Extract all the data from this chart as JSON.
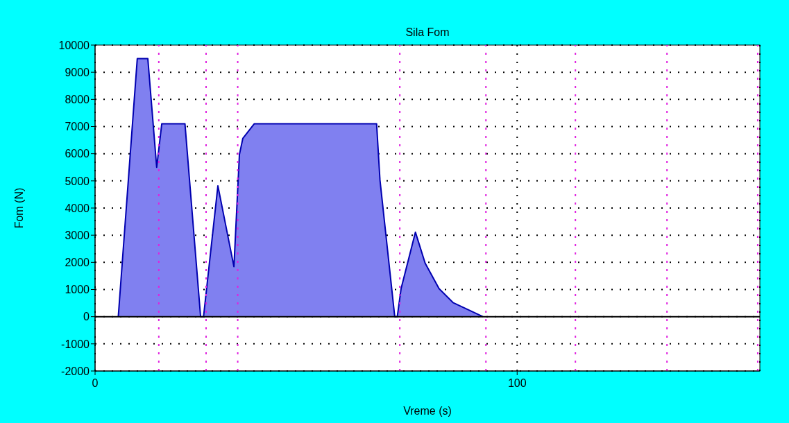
{
  "chart_data": {
    "type": "area",
    "title": "Sila Fom",
    "xlabel": "Vreme (s)",
    "ylabel": "Fom (N)",
    "series": [
      {
        "color": "#8080f0",
        "x": [
          5.5,
          10.0,
          12.5,
          14.6,
          15.8,
          21.3,
          25.0,
          25.7,
          29.1,
          32.9,
          34.2,
          35.0,
          37.7,
          66.7,
          67.5,
          71.0,
          71.6,
          72.5,
          75.9,
          78.2,
          81.5,
          84.8,
          91.9
        ],
        "values": [
          0,
          9500,
          9500,
          5500,
          7100,
          7100,
          0,
          0,
          4820,
          1840,
          5970,
          6560,
          7100,
          7100,
          5030,
          0,
          0,
          1030,
          3110,
          1970,
          1030,
          520,
          0
        ]
      }
    ],
    "xlim": [
      0,
      157.5
    ],
    "xticks": [
      0,
      100
    ],
    "ylim": [
      -2000,
      10000
    ],
    "yticks": [
      -2000,
      -1000,
      0,
      1000,
      2000,
      3000,
      4000,
      5000,
      6000,
      7000,
      8000,
      9000,
      10000
    ],
    "grid": true,
    "legend": false,
    "ref_lines": [
      {
        "axis": "y",
        "value": 0,
        "color": "#000000",
        "line_style": "solid"
      },
      {
        "axis": "x",
        "value": 15.1,
        "color": "#e020e0",
        "line_style": "dotted"
      },
      {
        "axis": "x",
        "value": 26.3,
        "color": "#e020e0",
        "line_style": "dotted"
      },
      {
        "axis": "x",
        "value": 33.8,
        "color": "#e020e0",
        "line_style": "dotted"
      },
      {
        "axis": "x",
        "value": 72.2,
        "color": "#e020e0",
        "line_style": "dotted"
      },
      {
        "axis": "x",
        "value": 92.6,
        "color": "#e020e0",
        "line_style": "dotted"
      },
      {
        "axis": "x",
        "value": 113.8,
        "color": "#e020e0",
        "line_style": "dotted"
      },
      {
        "axis": "x",
        "value": 135.5,
        "color": "#e020e0",
        "line_style": "dotted"
      },
      {
        "axis": "x",
        "value": 157,
        "color": "#e020e0",
        "line_style": "dotted"
      }
    ]
  }
}
